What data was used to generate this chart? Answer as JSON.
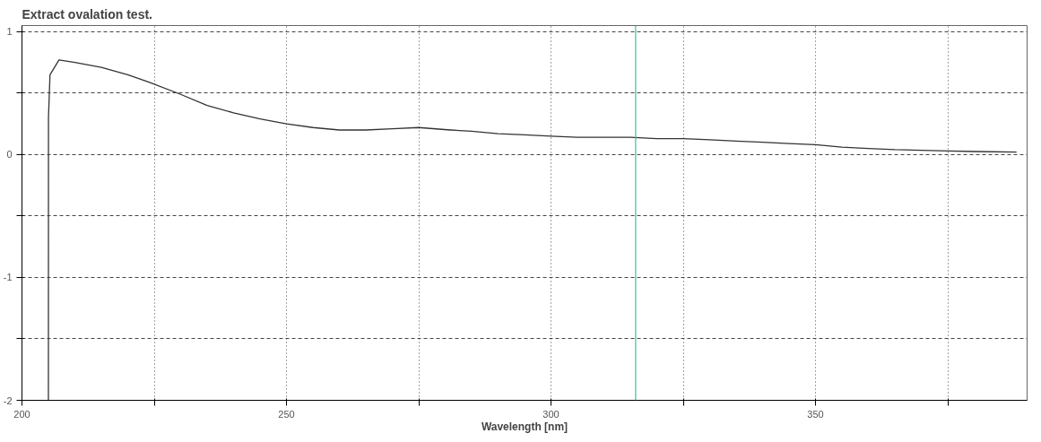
{
  "chart_data": {
    "type": "line",
    "title": "Extract ovalation test.",
    "xlabel": "Wavelength [nm]",
    "x": [
      205,
      205.01,
      205.3,
      207,
      210,
      215,
      220,
      224,
      230,
      235,
      240,
      245,
      250,
      255,
      260,
      265,
      270,
      275,
      281,
      285,
      290,
      295,
      300,
      305,
      310,
      315,
      320,
      325,
      330,
      335,
      340,
      345,
      350,
      355,
      360,
      365,
      370,
      375,
      380,
      388
    ],
    "series": [
      {
        "color": "#333333",
        "values": [
          -2,
          0.3,
          0.65,
          0.77,
          0.75,
          0.71,
          0.65,
          0.59,
          0.49,
          0.4,
          0.34,
          0.29,
          0.25,
          0.22,
          0.2,
          0.2,
          0.21,
          0.22,
          0.2,
          0.19,
          0.17,
          0.16,
          0.15,
          0.14,
          0.14,
          0.14,
          0.13,
          0.13,
          0.12,
          0.11,
          0.1,
          0.09,
          0.08,
          0.06,
          0.05,
          0.04,
          0.035,
          0.03,
          0.025,
          0.02
        ]
      }
    ],
    "xlim": [
      200,
      390
    ],
    "ylim": [
      -2,
      1.05
    ],
    "xticks": [
      200,
      {
        "value": 225,
        "label": null
      },
      250,
      {
        "value": 275,
        "label": null
      },
      300,
      {
        "value": 325,
        "label": null
      },
      350,
      {
        "value": 375,
        "label": null
      }
    ],
    "yticks": [
      -2,
      {
        "value": -1.5,
        "label": null
      },
      -1,
      {
        "value": -0.5,
        "label": null
      },
      0,
      {
        "value": 0.5,
        "label": null
      },
      1
    ],
    "ref_lines": [
      {
        "axis": "x",
        "value": 316,
        "color": "#3fbf8f"
      }
    ],
    "grid": true,
    "line_style": "solid",
    "marker": "none"
  }
}
